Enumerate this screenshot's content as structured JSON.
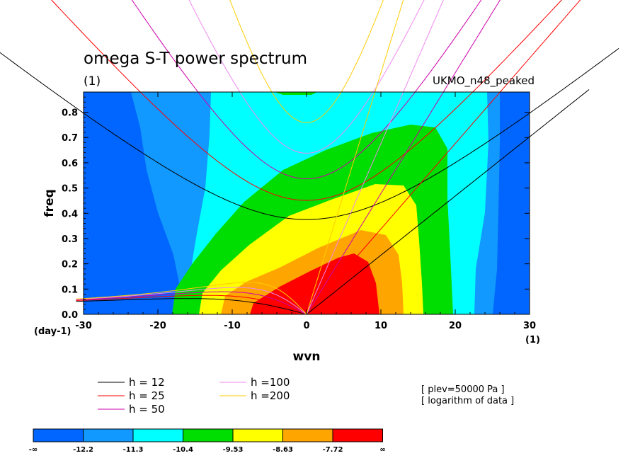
{
  "chart_data": {
    "type": "contour",
    "title": "omega S-T power spectrum",
    "x_units": "(1)",
    "dataset": "UKMO_n48_peaked",
    "xlabel": "wvn",
    "ylabel": "freq",
    "y_units": "(day-1)",
    "x_units_right": "(1)",
    "xlim": [
      -30,
      30
    ],
    "ylim": [
      0,
      0.88
    ],
    "x_ticks": [
      "-30",
      "-20",
      "-10",
      "0",
      "10",
      "20",
      "30"
    ],
    "x_tick_values": [
      -30,
      -20,
      -10,
      0,
      10,
      20,
      30
    ],
    "y_ticks": [
      "0.0",
      "0.1",
      "0.2",
      "0.3",
      "0.4",
      "0.5",
      "0.6",
      "0.7",
      "0.8"
    ],
    "y_tick_values": [
      0,
      0.1,
      0.2,
      0.3,
      0.4,
      0.5,
      0.6,
      0.7,
      0.8
    ],
    "equivalent_depths": [
      {
        "label": "h = 12",
        "h": 12,
        "color": "#000000"
      },
      {
        "label": "h = 25",
        "h": 25,
        "color": "#ff0000"
      },
      {
        "label": "h = 50",
        "h": 50,
        "color": "#cc00aa"
      },
      {
        "label": "h =100",
        "h": 100,
        "color": "#ee88ee"
      },
      {
        "label": "h =200",
        "h": 200,
        "color": "#ffcc00"
      }
    ],
    "annotations": [
      "[ plev=50000 Pa ]",
      "[ logarithm of data ]"
    ],
    "colorbar": {
      "levels": [
        "-∞",
        "-12.2",
        "-11.3",
        "-10.4",
        "-9.53",
        "-8.63",
        "-7.72",
        "∞"
      ],
      "colors": [
        "#0066ff",
        "#1199ff",
        "#00ffff",
        "#00dd00",
        "#ffff00",
        "#ffa500",
        "#ff0000"
      ]
    }
  }
}
